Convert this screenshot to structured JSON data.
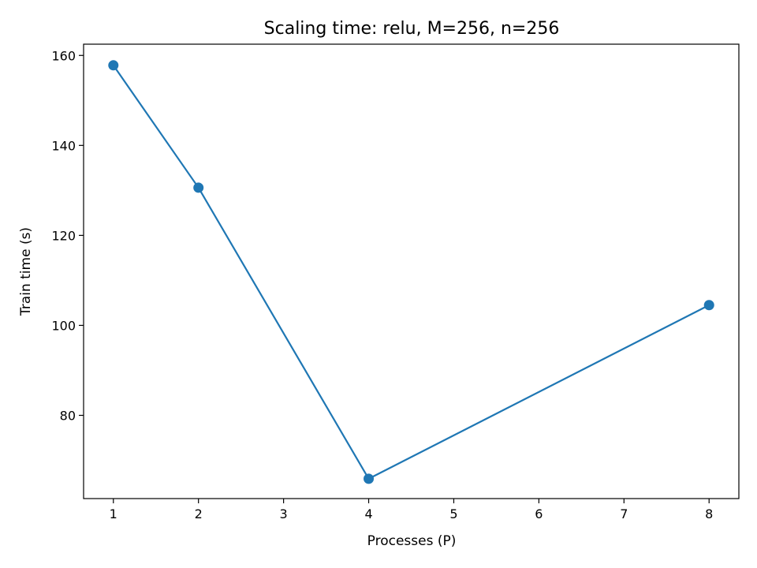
{
  "chart_data": {
    "type": "line",
    "title": "Scaling time: relu, M=256, n=256",
    "xlabel": "Processes (P)",
    "ylabel": "Train time (s)",
    "xlim": [
      0.65,
      8.35
    ],
    "ylim": [
      61.5,
      162.5
    ],
    "xticks": [
      1,
      2,
      3,
      4,
      5,
      6,
      7,
      8
    ],
    "yticks": [
      80,
      100,
      120,
      140,
      160
    ],
    "grid": false,
    "color": "#1f77b4",
    "marker": "circle",
    "series": [
      {
        "x": [
          1,
          2,
          4,
          8
        ],
        "y": [
          157.8,
          130.6,
          65.9,
          104.5
        ]
      }
    ]
  }
}
